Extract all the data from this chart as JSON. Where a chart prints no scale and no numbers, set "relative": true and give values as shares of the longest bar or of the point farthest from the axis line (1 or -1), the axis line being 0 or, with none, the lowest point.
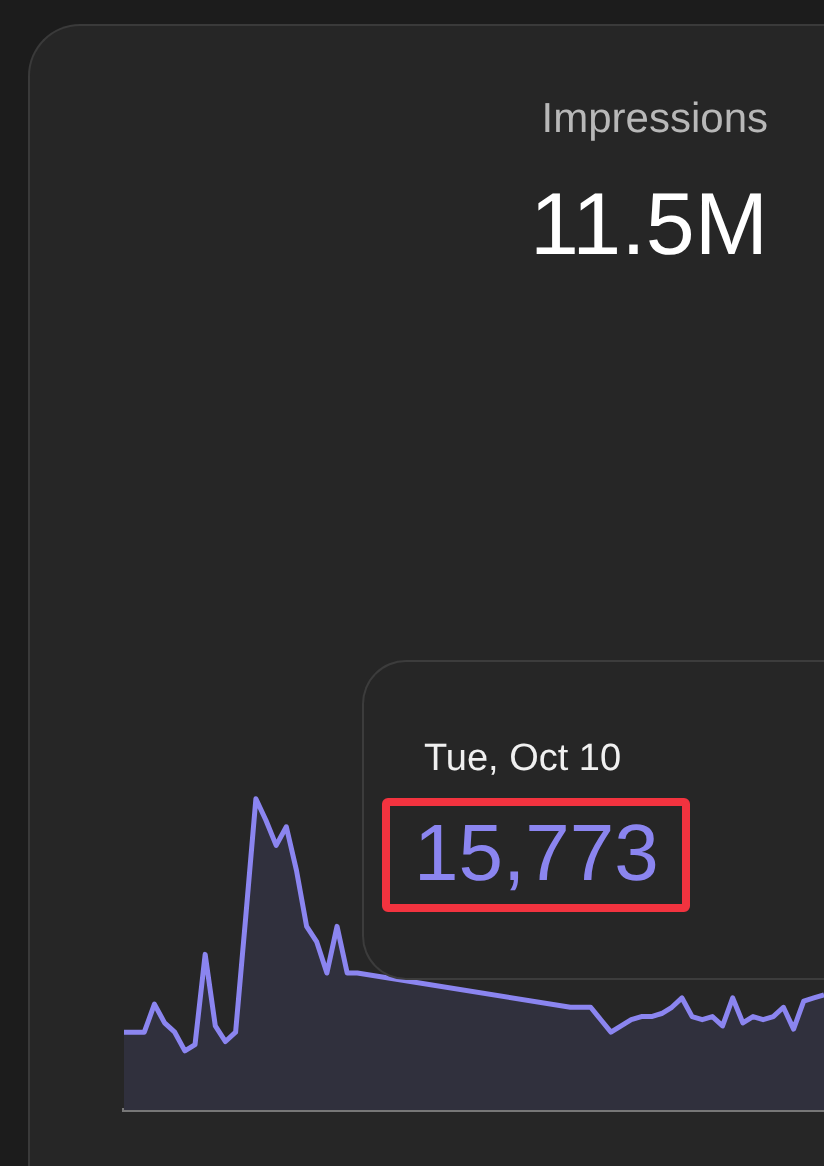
{
  "chart_data": {
    "type": "area",
    "title": "Impressions",
    "subtitle": "11.5M",
    "relative": true,
    "marker": "none",
    "annotations": [
      "Tue, Oct 10",
      "15,773"
    ],
    "categories": [
      null,
      null,
      null,
      null,
      null,
      null,
      null,
      null,
      null,
      null,
      null,
      null,
      null,
      null,
      null,
      null,
      null,
      null,
      null,
      null,
      null,
      null,
      null,
      null,
      null,
      null,
      null,
      null,
      null,
      null,
      null,
      null,
      null,
      null,
      null,
      null,
      null,
      null,
      null,
      null,
      null,
      null,
      null,
      null,
      null,
      null,
      null,
      null,
      null,
      null,
      null,
      null,
      null,
      null,
      null,
      null,
      null,
      null,
      null,
      null,
      null,
      null,
      null,
      null,
      null,
      null,
      null,
      null,
      null,
      null
    ],
    "series": [
      {
        "color": "#8b85f0",
        "values": [
          0.25,
          0.25,
          0.25,
          0.34,
          0.28,
          0.25,
          0.19,
          0.21,
          0.5,
          0.27,
          0.22,
          0.25,
          0.62,
          1,
          0.93,
          0.85,
          0.91,
          0.77,
          0.59,
          0.54,
          0.44,
          0.59,
          0.44,
          0.44,
          null,
          null,
          null,
          null,
          null,
          null,
          null,
          null,
          null,
          null,
          null,
          null,
          null,
          null,
          null,
          null,
          null,
          null,
          null,
          null,
          0.33,
          0.33,
          0.33,
          0.29,
          0.25,
          0.27,
          0.29,
          0.3,
          0.3,
          0.31,
          0.33,
          0.36,
          0.3,
          0.29,
          0.3,
          0.27,
          0.36,
          0.28,
          0.3,
          0.29,
          0.3,
          0.33,
          0.26,
          0.35,
          0.36,
          0.37
        ]
      }
    ]
  }
}
